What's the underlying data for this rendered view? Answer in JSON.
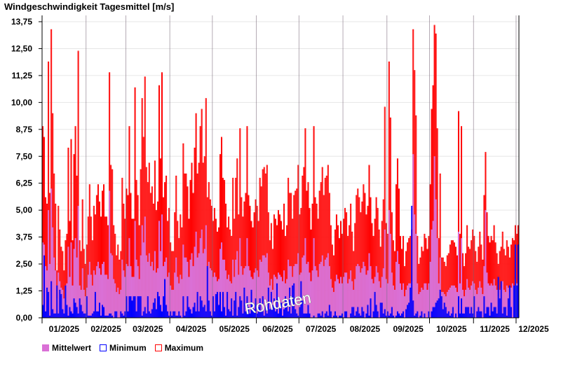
{
  "chart_data": {
    "type": "bar",
    "title": "Windgeschwindigkeit Tagesmittel [m/s]",
    "xlabel": "",
    "ylabel": "m/s",
    "ylim": [
      0,
      13.75
    ],
    "yticks": [
      "0,00",
      "1,25",
      "2,50",
      "3,75",
      "5,00",
      "6,25",
      "7,50",
      "8,75",
      "10,00",
      "11,25",
      "12,50",
      "13,75"
    ],
    "months": [
      "01/2025",
      "02/2025",
      "03/2025",
      "04/2025",
      "05/2025",
      "06/2025",
      "07/2025",
      "08/2025",
      "09/2025",
      "10/2025",
      "11/2025",
      "12/2025"
    ],
    "month_days": [
      31,
      28,
      31,
      30,
      31,
      30,
      31,
      31,
      30,
      31,
      30,
      2
    ],
    "grid": true,
    "legend_position": "bottom-left",
    "watermark": "Rohdaten",
    "colors": {
      "mean": "#da70d6",
      "min": "#0000ff",
      "max": "#ff0000"
    },
    "series": [
      {
        "name": "Mittelwert",
        "values": [
          3.5,
          3.4,
          2.4,
          2.2,
          5.0,
          2.5,
          6.0,
          4.2,
          2.8,
          2.2,
          0.9,
          2.1,
          1.7,
          1.4,
          1.3,
          0.9,
          1.5,
          1.6,
          3.3,
          1.9,
          3.5,
          1.5,
          3.2,
          3.7,
          2.8,
          5.2,
          1.5,
          1.3,
          2.3,
          1.3,
          1.0,
          1.4,
          2.0,
          2.6,
          2.0,
          1.5,
          2.2,
          2.0,
          2.4,
          2.6,
          2.3,
          2.0,
          2.5,
          2.6,
          2.0,
          2.0,
          1.8,
          5.9,
          3.0,
          2.9,
          1.8,
          1.6,
          1.2,
          1.4,
          1.1,
          1.3,
          2.7,
          2.2,
          1.9,
          2.5,
          2.4,
          3.7,
          2.4,
          1.9,
          1.9,
          4.5,
          2.7,
          2.4,
          1.8,
          2.9,
          4.3,
          3.5,
          4.7,
          2.9,
          2.6,
          3.0,
          2.4,
          2.6,
          2.2,
          3.1,
          2.1,
          2.3,
          4.5,
          3.1,
          4.8,
          2.4,
          2.6,
          2.8,
          1.9,
          2.1,
          1.5,
          1.3,
          1.3,
          2.1,
          2.8,
          1.9,
          1.6,
          2.0,
          1.8,
          3.4,
          2.8,
          2.8,
          2.6,
          1.9,
          2.7,
          3.0,
          2.4,
          3.3,
          4.0,
          2.8,
          3.0,
          3.7,
          4.1,
          3.0,
          3.2,
          4.3,
          2.4,
          2.6,
          2.3,
          2.2,
          1.9,
          2.1,
          1.9,
          1.7,
          1.8,
          3.2,
          3.5,
          2.7,
          2.7,
          2.2,
          1.8,
          2.0,
          1.7,
          1.6,
          2.7,
          1.9,
          2.7,
          3.1,
          2.0,
          3.7,
          2.4,
          2.0,
          2.3,
          2.4,
          3.7,
          2.4,
          2.2,
          1.9,
          1.8,
          2.1,
          2.3,
          2.2,
          1.9,
          2.7,
          2.6,
          2.9,
          2.9,
          2.8,
          3.0,
          2.1,
          1.5,
          1.8,
          1.3,
          2.0,
          1.9,
          1.8,
          2.1,
          2.0,
          1.9,
          1.7,
          2.2,
          1.6,
          1.8,
          2.7,
          2.4,
          2.4,
          1.9,
          2.4,
          2.5,
          2.5,
          3.0,
          2.0,
          2.1,
          2.8,
          2.9,
          3.7,
          2.5,
          2.6,
          2.1,
          1.7,
          2.2,
          3.7,
          2.4,
          2.2,
          1.9,
          2.5,
          2.6,
          2.9,
          2.4,
          2.7,
          2.8,
          3.0,
          2.4,
          1.8,
          1.4,
          1.2,
          1.7,
          2.0,
          1.8,
          1.6,
          1.9,
          1.6,
          1.9,
          2.1,
          2.1,
          1.6,
          1.8,
          2.2,
          1.7,
          1.3,
          1.8,
          2.4,
          2.5,
          2.4,
          2.1,
          2.3,
          2.6,
          2.4,
          2.0,
          2.2,
          3.0,
          2.4,
          1.8,
          1.6,
          1.9,
          2.4,
          2.1,
          1.7,
          1.4,
          1.9,
          2.3,
          4.1,
          1.8,
          1.6,
          5.0,
          3.9,
          2.1,
          1.5,
          1.3,
          2.6,
          3.1,
          2.5,
          1.6,
          1.3,
          1.6,
          1.0,
          1.3,
          1.5,
          1.6,
          1.6,
          1.7,
          7.6,
          4.8,
          3.9,
          1.6,
          1.1,
          1.2,
          1.4,
          1.3,
          1.6,
          1.6,
          1.3,
          1.6,
          2.6,
          4.1,
          4.5,
          7.5,
          5.5,
          3.7,
          1.6,
          2.8,
          1.2,
          1.2,
          1.1,
          1.0,
          1.2,
          1.3,
          1.4,
          1.5,
          1.5,
          1.5,
          1.4,
          1.2,
          4.0,
          1.6,
          3.7,
          1.3,
          1.0,
          1.3,
          1.8,
          1.4,
          1.3,
          1.5,
          1.7,
          1.6,
          1.3,
          1.1,
          1.4,
          1.7,
          1.4,
          1.1,
          2.4,
          5.0,
          2.1,
          1.6,
          1.5,
          1.6,
          1.5,
          1.8,
          1.5,
          1.3,
          1.0,
          1.3,
          1.4,
          1.7,
          1.3,
          1.2,
          1.5,
          1.4,
          1.2,
          1.4,
          1.6,
          1.5,
          1.8,
          1.6,
          1.8
        ]
      },
      {
        "name": "Minimum",
        "values": [
          0.6,
          2.9,
          0.3,
          1.4,
          1.2,
          0.1,
          1.7,
          0.4,
          0.2,
          0.2,
          1.5,
          0.2,
          1.3,
          1.1,
          0.4,
          0.2,
          1.5,
          0.6,
          0.1,
          0.5,
          0.3,
          0.2,
          0.9,
          0.7,
          0.5,
          0.2,
          0.9,
          0.6,
          0.3,
          0.2,
          0.2,
          1.0,
          0.1,
          0.1,
          0.1,
          0.2,
          0.3,
          1.2,
          0.3,
          0.3,
          0.7,
          0.1,
          0.6,
          0.5,
          0.1,
          0.1,
          0.1,
          0.2,
          0.2,
          0.1,
          0.0,
          0.3,
          0.3,
          0.0,
          0.0,
          0.3,
          0.2,
          0.1,
          0.3,
          1.0,
          0.3,
          1.0,
          1.0,
          0.8,
          1.0,
          1.0,
          0.3,
          1.0,
          1.0,
          1.0,
          0.1,
          0.3,
          0.5,
          0.2,
          1.0,
          0.3,
          0.2,
          0.4,
          0.7,
          0.9,
          0.4,
          1.2,
          1.0,
          0.6,
          0.3,
          1.0,
          1.8,
          0.6,
          0.3,
          0.1,
          0.3,
          0.1,
          0.3,
          0.3,
          0.1,
          0.1,
          0.3,
          0.1,
          0.0,
          1.0,
          0.1,
          0.3,
          1.0,
          0.5,
          0.4,
          0.2,
          0.5,
          0.7,
          0.3,
          1.2,
          0.3,
          1.0,
          0.8,
          0.5,
          0.6,
          0.3,
          2.4,
          0.8,
          0.3,
          0.1,
          1.0,
          0.3,
          1.1,
          1.2,
          0.6,
          1.2,
          0.3,
          1.2,
          0.5,
          0.1,
          1.2,
          0.4,
          0.3,
          0.9,
          0.1,
          0.8,
          1.2,
          0.1,
          0.5,
          1.0,
          0.8,
          0.2,
          1.4,
          0.3,
          1.0,
          0.5,
          0.2,
          1.3,
          0.6,
          0.4,
          0.9,
          0.2,
          0.5,
          0.9,
          0.3,
          1.0,
          0.1,
          0.6,
          0.2,
          1.4,
          0.4,
          1.2,
          0.6,
          0.9,
          0.3,
          1.6,
          0.2,
          0.5,
          0.7,
          0.1,
          0.4,
          1.0,
          0.8,
          0.3,
          1.4,
          0.2,
          1.5,
          1.6,
          0.4,
          0.2,
          0.1,
          0.5,
          1.7,
          0.8,
          0.2,
          0.2,
          0.2,
          0.6,
          0.2,
          0.0,
          0.0,
          0.1,
          0.0,
          0.0,
          0.2,
          0.2,
          0.1,
          0.3,
          0.0,
          0.2,
          0.3,
          0.1,
          0.6,
          0.3,
          0.0,
          0.1,
          0.3,
          0.1,
          0.0,
          0.1,
          0.1,
          0.2,
          0.0,
          0.3,
          0.3,
          0.0,
          0.0,
          0.2,
          0.5,
          0.5,
          0.1,
          0.3,
          0.5,
          0.2,
          0.1,
          0.5,
          0.3,
          0.0,
          0.2,
          0.6,
          0.1,
          0.9,
          0.0,
          0.3,
          1.2,
          0.6,
          0.3,
          0.0,
          0.7,
          0.7,
          0.2,
          0.4,
          0.1,
          0.3,
          0.1,
          0.2,
          0.5,
          0.1,
          0.0,
          0.1,
          0.3,
          0.2,
          0.1,
          0.2,
          0.3,
          0.0,
          0.4,
          0.6,
          0.7,
          1.4,
          5.2,
          0.8,
          0.1,
          0.2,
          0.3,
          0.0,
          0.1,
          0.3,
          0.0,
          0.2,
          0.0,
          0.0,
          0.3,
          0.0,
          0.3,
          0.5,
          0.5,
          0.7,
          0.8,
          0.9,
          1.3,
          1.0,
          0.4,
          0.7,
          0.5,
          0.2,
          0.3,
          0.1,
          0.2,
          0.5,
          0.0,
          0.2,
          0.0,
          1.0,
          0.2,
          0.9,
          0.2,
          0.2,
          0.5,
          0.5,
          0.5,
          0.2,
          0.5,
          0.2,
          1.0,
          0.0,
          0.3,
          0.5,
          0.3,
          0.3,
          0.0,
          1.0,
          0.2,
          0.5,
          0.5,
          0.1,
          0.7,
          0.3,
          0.5,
          0.5,
          0.2,
          1.9,
          0.9,
          1.7,
          0.2,
          0.5,
          0.5,
          0.1,
          0.9,
          1.5,
          0.5,
          0.0,
          1.5,
          3.4,
          1.5,
          3.4
        ]
      },
      {
        "name": "Maximum",
        "values": [
          8.9,
          8.4,
          5.6,
          5.3,
          11.9,
          5.8,
          13.4,
          9.5,
          6.7,
          5.3,
          2.2,
          5.2,
          4.1,
          3.3,
          3.1,
          2.2,
          3.6,
          3.9,
          7.9,
          4.5,
          8.3,
          3.6,
          7.6,
          8.9,
          6.6,
          12.4,
          3.6,
          3.1,
          5.5,
          3.2,
          2.5,
          3.4,
          4.7,
          6.2,
          4.7,
          3.6,
          5.2,
          4.8,
          5.7,
          6.2,
          5.4,
          4.7,
          5.9,
          6.2,
          4.7,
          4.7,
          4.3,
          11.4,
          7.1,
          6.9,
          4.3,
          3.9,
          2.9,
          3.4,
          2.7,
          3.1,
          6.5,
          5.3,
          4.6,
          6.0,
          5.7,
          8.9,
          5.8,
          4.6,
          4.6,
          10.7,
          6.4,
          5.7,
          4.3,
          6.9,
          10.2,
          8.4,
          11.2,
          7.0,
          6.3,
          7.2,
          5.8,
          6.1,
          5.3,
          7.3,
          5.0,
          5.4,
          10.8,
          7.4,
          11.4,
          5.6,
          6.3,
          6.6,
          4.5,
          5.1,
          3.5,
          3.1,
          3.1,
          4.9,
          6.6,
          4.5,
          3.7,
          4.8,
          4.2,
          8.1,
          6.7,
          6.7,
          6.1,
          4.6,
          6.4,
          7.2,
          5.8,
          7.9,
          9.5,
          6.7,
          7.2,
          8.9,
          9.7,
          7.2,
          7.5,
          10.2,
          5.6,
          6.3,
          5.5,
          5.2,
          4.5,
          5.1,
          4.6,
          4.0,
          4.2,
          7.6,
          8.4,
          6.5,
          6.4,
          5.3,
          4.2,
          4.7,
          4.1,
          3.8,
          6.5,
          4.6,
          6.5,
          7.4,
          4.8,
          8.8,
          5.6,
          4.7,
          5.4,
          5.8,
          8.9,
          5.7,
          5.2,
          4.5,
          4.2,
          4.9,
          5.5,
          5.2,
          4.5,
          6.5,
          6.1,
          6.9,
          7.0,
          6.7,
          7.1,
          4.9,
          3.6,
          4.4,
          3.2,
          4.8,
          4.6,
          4.3,
          5.0,
          4.8,
          4.5,
          4.1,
          5.3,
          3.8,
          4.3,
          6.5,
          5.8,
          5.8,
          4.6,
          5.7,
          5.9,
          6.0,
          7.1,
          4.8,
          5.1,
          6.6,
          7.0,
          8.8,
          5.9,
          6.3,
          5.1,
          4.1,
          5.3,
          8.9,
          5.6,
          5.3,
          4.6,
          5.9,
          6.3,
          7.0,
          5.7,
          6.5,
          6.6,
          7.1,
          5.8,
          4.3,
          3.4,
          2.9,
          4.1,
          4.8,
          4.3,
          3.7,
          4.5,
          3.9,
          4.6,
          5.1,
          4.9,
          3.8,
          4.3,
          5.3,
          4.0,
          3.1,
          4.4,
          5.7,
          6.0,
          5.6,
          4.9,
          5.4,
          6.2,
          5.8,
          4.8,
          5.2,
          7.1,
          5.6,
          4.4,
          3.8,
          4.6,
          5.6,
          5.1,
          4.1,
          3.3,
          4.5,
          5.5,
          9.8,
          4.4,
          3.9,
          11.9,
          9.3,
          4.9,
          3.6,
          3.1,
          6.2,
          7.4,
          6.0,
          3.8,
          3.2,
          3.8,
          2.4,
          3.1,
          3.5,
          3.7,
          3.8,
          4.1,
          13.4,
          11.5,
          9.4,
          3.8,
          2.5,
          2.8,
          3.3,
          3.1,
          3.9,
          3.7,
          3.2,
          3.8,
          6.2,
          9.7,
          10.8,
          13.6,
          13.2,
          8.8,
          3.7,
          6.7,
          2.8,
          2.8,
          2.6,
          2.4,
          2.9,
          3.0,
          3.4,
          3.6,
          3.6,
          3.5,
          3.3,
          2.9,
          9.6,
          3.9,
          8.9,
          3.0,
          2.4,
          3.0,
          4.3,
          3.3,
          3.2,
          3.6,
          4.1,
          3.8,
          3.1,
          2.6,
          3.3,
          4.0,
          3.4,
          2.7,
          5.7,
          7.7,
          4.9,
          3.8,
          3.5,
          3.8,
          3.6,
          4.3,
          3.5,
          3.0,
          2.5,
          3.1,
          3.3,
          4.0,
          3.2,
          2.9,
          3.6,
          3.3,
          2.8,
          3.4,
          3.7,
          3.6,
          4.3,
          3.9,
          4.3
        ]
      }
    ]
  },
  "legend": {
    "mean": "Mittelwert",
    "min": "Minimum",
    "max": "Maximum"
  }
}
